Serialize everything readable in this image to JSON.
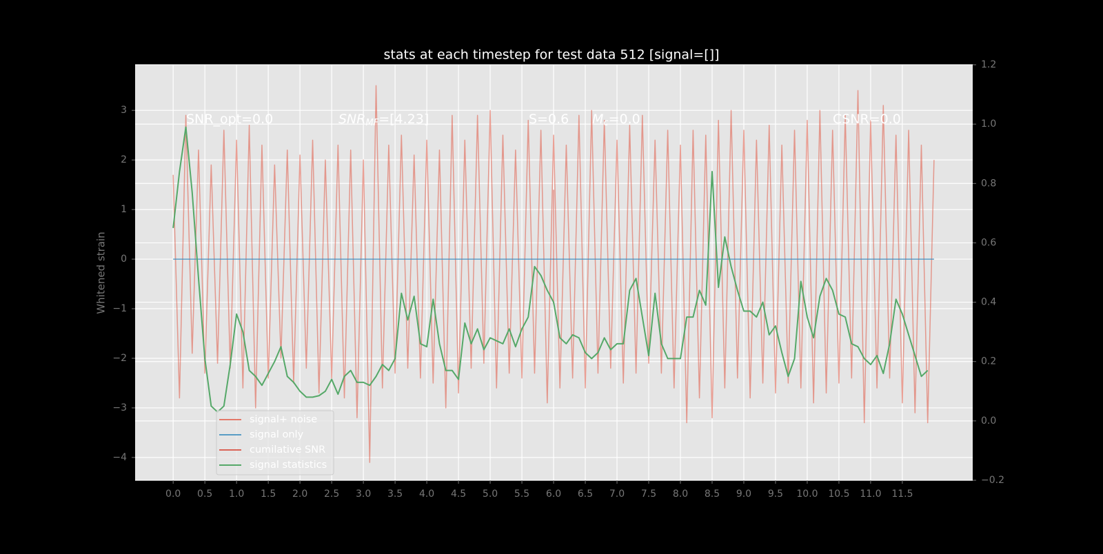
{
  "chart_data": {
    "type": "line",
    "title": "stats at each timestep for test data 512 [signal=[]]",
    "ylabel": "Whitened strain",
    "xlim": [
      -0.6,
      12.61
    ],
    "xticks": [
      {
        "value": 0,
        "label": "0.0"
      },
      0.5,
      {
        "value": 1,
        "label": "1.0"
      },
      1.5,
      {
        "value": 2,
        "label": "2.0"
      },
      2.5,
      {
        "value": 3,
        "label": "3.0"
      },
      3.5,
      {
        "value": 4,
        "label": "4.0"
      },
      4.5,
      {
        "value": 5,
        "label": "5.0"
      },
      5.5,
      {
        "value": 6,
        "label": "6.0"
      },
      6.5,
      {
        "value": 7,
        "label": "7.0"
      },
      7.5,
      {
        "value": 8,
        "label": "8.0"
      },
      8.5,
      {
        "value": 9,
        "label": "9.0"
      },
      9.5,
      {
        "value": 10,
        "label": "10.0"
      },
      10.5,
      {
        "value": 11,
        "label": "11.0"
      },
      11.5
    ],
    "ylim": [
      -4.46,
      3.92
    ],
    "yticks": [
      {
        "value": -4,
        "label": "−4"
      },
      {
        "value": -3,
        "label": "−3"
      },
      {
        "value": -2,
        "label": "−2"
      },
      {
        "value": -1,
        "label": "−1"
      },
      0,
      1,
      2,
      3
    ],
    "y2lim": [
      -0.2,
      1.2
    ],
    "y2ticks": [
      {
        "value": -0.2,
        "label": "−0.2"
      },
      {
        "value": 0,
        "label": "0.0"
      },
      0.2,
      0.4,
      0.6,
      0.8,
      {
        "value": 1,
        "label": "1.0"
      },
      1.2
    ],
    "grid": true,
    "legend": "lower left",
    "annotations": [
      {
        "text": "SNR_opt=0.0"
      },
      {
        "text": "SNR",
        "sub": "MF",
        "tail": "=[4.23]"
      },
      {
        "text": "S=0.6"
      },
      {
        "text": "M",
        "sub": "c",
        "tail": "=0.0"
      },
      {
        "text": "CSNR=0.0"
      }
    ],
    "series": [
      {
        "name": "signal+ noise",
        "color": "#E24A33",
        "opacity": 0.5,
        "x": [
          0,
          0.1,
          0.2,
          0.3,
          0.4,
          0.5,
          0.6,
          0.7,
          0.8,
          0.9,
          1,
          1.1,
          1.2,
          1.3,
          1.4,
          1.5,
          1.6,
          1.7,
          1.8,
          1.9,
          2,
          2.1,
          2.2,
          2.3,
          2.4,
          2.5,
          2.6,
          2.7,
          2.8,
          2.9,
          3,
          3.1,
          3.2,
          3.3,
          3.4,
          3.5,
          3.6,
          3.7,
          3.8,
          3.9,
          4,
          4.1,
          4.2,
          4.3,
          4.4,
          4.5,
          4.6,
          4.7,
          4.8,
          4.9,
          5,
          5.1,
          5.2,
          5.3,
          5.4,
          5.5,
          5.6,
          5.7,
          5.8,
          5.9,
          6,
          6.1,
          6.2,
          6.3,
          6.4,
          6.5,
          6.6,
          6.7,
          6.8,
          6.9,
          7,
          7.1,
          7.2,
          7.3,
          7.4,
          7.5,
          7.6,
          7.7,
          7.8,
          7.9,
          8,
          8.1,
          8.2,
          8.3,
          8.4,
          8.5,
          8.6,
          8.7,
          8.8,
          8.9,
          9,
          9.1,
          9.2,
          9.3,
          9.4,
          9.5,
          9.6,
          9.7,
          9.8,
          9.9,
          10,
          10.1,
          10.2,
          10.3,
          10.4,
          10.5,
          10.6,
          10.7,
          10.8,
          10.9,
          11,
          11.1,
          11.2,
          11.3,
          11.4,
          11.5,
          11.6,
          11.7,
          11.8,
          11.9,
          12
        ],
        "values": [
          1.7,
          -2.8,
          2.9,
          -1.9,
          2.2,
          -2.3,
          1.9,
          -2.1,
          2.6,
          -2.2,
          2.4,
          -2.6,
          2.7,
          -3.0,
          2.3,
          -2.4,
          1.9,
          -2.0,
          2.2,
          -2.5,
          2.1,
          -2.2,
          2.4,
          -2.7,
          2.0,
          -2.4,
          2.3,
          -2.8,
          2.2,
          -3.2,
          2.0,
          -4.1,
          3.5,
          -2.6,
          2.3,
          -2.3,
          2.5,
          -2.2,
          2.1,
          -2.4,
          2.4,
          -2.5,
          2.2,
          -3.0,
          2.9,
          -2.7,
          2.4,
          -2.2,
          2.9,
          -2.1,
          3.0,
          -2.6,
          2.5,
          -2.3,
          2.2,
          -2.4,
          2.8,
          -2.3,
          2.6,
          -2.9,
          2.5,
          -2.6,
          2.3,
          -2.4,
          2.9,
          -2.6,
          3.0,
          -2.3,
          2.8,
          -2.2,
          2.4,
          -2.5,
          2.7,
          -2.3,
          2.9,
          -2.1,
          2.4,
          -2.3,
          2.6,
          -2.6,
          2.3,
          -3.3,
          2.6,
          -2.8,
          2.5,
          -3.2,
          2.8,
          -2.6,
          3.0,
          -2.4,
          2.6,
          -2.8,
          2.4,
          -2.5,
          2.7,
          -2.7,
          2.3,
          -2.5,
          2.6,
          -2.6,
          2.8,
          -2.9,
          3.0,
          -2.7,
          2.6,
          -2.5,
          2.9,
          -2.4,
          3.4,
          -3.3,
          2.8,
          -2.6,
          3.1,
          -2.4,
          2.5,
          -2.9,
          2.6,
          -3.1,
          2.3,
          -3.3,
          2.0
        ]
      },
      {
        "name": "signal only",
        "color": "#348ABD",
        "opacity": 0.8,
        "x": [
          0,
          12
        ],
        "values": [
          0,
          0
        ]
      },
      {
        "name": "cumilative SNR",
        "color": "#d62c1a",
        "opacity": 0.5,
        "x": [
          6,
          6
        ],
        "values": [
          -0.9,
          1.4
        ]
      },
      {
        "name": "signal statistics",
        "color": "#55a868",
        "opacity": 1,
        "axis": "y2",
        "x": [
          0,
          0.1,
          0.2,
          0.3,
          0.4,
          0.5,
          0.6,
          0.7,
          0.8,
          0.9,
          1,
          1.1,
          1.2,
          1.3,
          1.4,
          1.5,
          1.6,
          1.7,
          1.8,
          1.9,
          2,
          2.1,
          2.2,
          2.3,
          2.4,
          2.5,
          2.6,
          2.7,
          2.8,
          2.9,
          3,
          3.1,
          3.2,
          3.3,
          3.4,
          3.5,
          3.6,
          3.7,
          3.8,
          3.9,
          4,
          4.1,
          4.2,
          4.3,
          4.4,
          4.5,
          4.6,
          4.7,
          4.8,
          4.9,
          5,
          5.1,
          5.2,
          5.3,
          5.4,
          5.5,
          5.6,
          5.7,
          5.8,
          5.9,
          6,
          6.1,
          6.2,
          6.3,
          6.4,
          6.5,
          6.6,
          6.7,
          6.8,
          6.9,
          7,
          7.1,
          7.2,
          7.3,
          7.4,
          7.5,
          7.6,
          7.7,
          7.8,
          7.9,
          8,
          8.1,
          8.2,
          8.3,
          8.4,
          8.5,
          8.6,
          8.7,
          8.8,
          8.9,
          9,
          9.1,
          9.2,
          9.3,
          9.4,
          9.5,
          9.6,
          9.7,
          9.8,
          9.9,
          10,
          10.1,
          10.2,
          10.3,
          10.4,
          10.5,
          10.6,
          10.7,
          10.8,
          10.9,
          11,
          11.1,
          11.2,
          11.3,
          11.4,
          11.5,
          11.6,
          11.7,
          11.8,
          11.9
        ],
        "values": [
          0.65,
          0.84,
          0.99,
          0.77,
          0.48,
          0.21,
          0.05,
          0.03,
          0.05,
          0.19,
          0.36,
          0.3,
          0.17,
          0.15,
          0.12,
          0.16,
          0.2,
          0.25,
          0.15,
          0.13,
          0.1,
          0.08,
          0.08,
          0.085,
          0.1,
          0.14,
          0.09,
          0.15,
          0.17,
          0.13,
          0.13,
          0.12,
          0.15,
          0.19,
          0.17,
          0.21,
          0.43,
          0.34,
          0.42,
          0.26,
          0.25,
          0.41,
          0.26,
          0.17,
          0.17,
          0.14,
          0.33,
          0.26,
          0.31,
          0.24,
          0.28,
          0.27,
          0.26,
          0.31,
          0.25,
          0.31,
          0.35,
          0.52,
          0.49,
          0.44,
          0.4,
          0.28,
          0.26,
          0.29,
          0.28,
          0.23,
          0.21,
          0.23,
          0.28,
          0.24,
          0.26,
          0.26,
          0.44,
          0.48,
          0.35,
          0.22,
          0.43,
          0.26,
          0.21,
          0.21,
          0.21,
          0.35,
          0.35,
          0.44,
          0.39,
          0.84,
          0.45,
          0.62,
          0.52,
          0.44,
          0.37,
          0.37,
          0.35,
          0.4,
          0.29,
          0.32,
          0.23,
          0.15,
          0.21,
          0.47,
          0.35,
          0.28,
          0.42,
          0.48,
          0.44,
          0.36,
          0.35,
          0.26,
          0.25,
          0.21,
          0.19,
          0.22,
          0.16,
          0.26,
          0.41,
          0.36,
          0.29,
          0.22,
          0.15,
          0.17
        ]
      }
    ]
  }
}
